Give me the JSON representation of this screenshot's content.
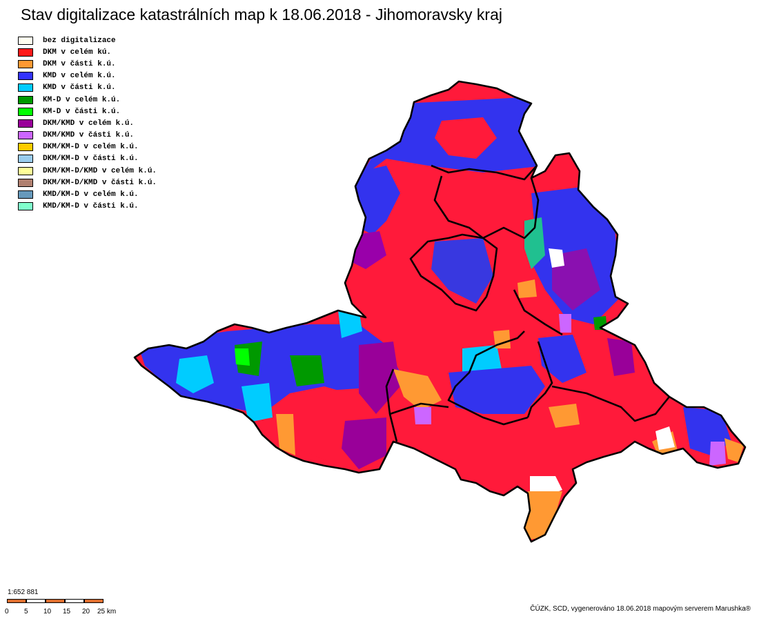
{
  "title": "Stav digitalizace katastrálních map k 18.06.2018 - Jihomoravsky kraj",
  "legend": [
    {
      "label": "bez digitalizace",
      "color": "#fffff0"
    },
    {
      "label": "DKM v celém kú.",
      "color": "#ff1a1a"
    },
    {
      "label": "DKM v části k.ú.",
      "color": "#ff9933"
    },
    {
      "label": "KMD v celém k.ú.",
      "color": "#3333ff"
    },
    {
      "label": "KMD v části k.ú.",
      "color": "#00ccff"
    },
    {
      "label": "KM-D v celém k.ú.",
      "color": "#009900"
    },
    {
      "label": "KM-D v části k.ú.",
      "color": "#00ff00"
    },
    {
      "label": "DKM/KMD v celém k.ú.",
      "color": "#990099"
    },
    {
      "label": "DKM/KMD v části k.ú.",
      "color": "#cc66ff"
    },
    {
      "label": "DKM/KM-D v celém k.ú.",
      "color": "#ffcc00"
    },
    {
      "label": "DKM/KM-D v části k.ú.",
      "color": "#99ccee"
    },
    {
      "label": "DKM/KM-D/KMD v celém k.ú.",
      "color": "#ffff99"
    },
    {
      "label": "DKM/KM-D/KMD v části k.ú.",
      "color": "#b08070"
    },
    {
      "label": "KMD/KM-D v celém k.ú.",
      "color": "#6699bb"
    },
    {
      "label": "KMD/KM-D v části k.ú.",
      "color": "#80ffcc"
    }
  ],
  "scale": {
    "ratio": "1:652 881",
    "ticks": [
      "0",
      "5",
      "10",
      "15",
      "20",
      "25 km"
    ],
    "colors": [
      "#e07030",
      "#ffffff",
      "#e07030",
      "#ffffff",
      "#e07030"
    ]
  },
  "credit": "ČÚZK, SCD, vygenerováno 18.06.2018 mapovým serverem Marushka®"
}
